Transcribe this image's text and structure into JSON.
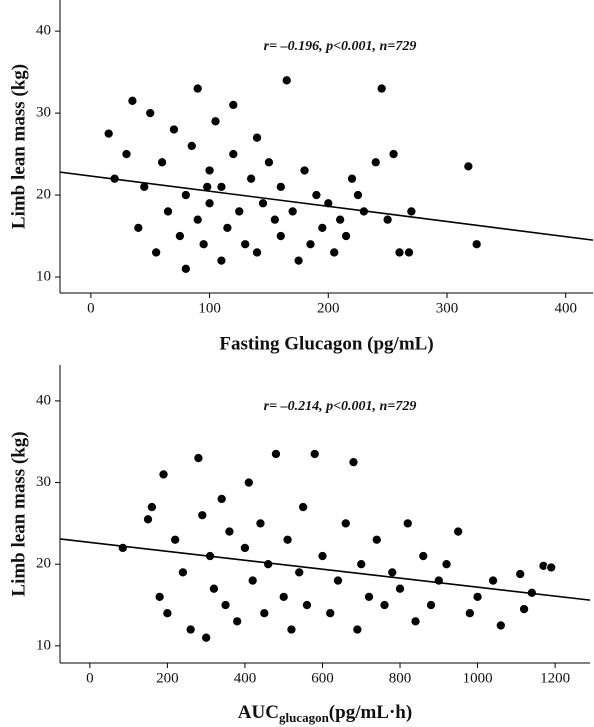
{
  "chart_data": [
    {
      "type": "scatter",
      "annotation": "r= –0.196, p<0.001, n=729",
      "ylabel": "Limb lean mass (kg)",
      "xlabel": "Fasting Glucagon (pg/mL)",
      "xlim": [
        -26,
        423
      ],
      "ylim": [
        8.05,
        43.8
      ],
      "xticks": [
        0,
        100,
        200,
        300,
        400
      ],
      "yticks": [
        10,
        20,
        30,
        40
      ],
      "color": "#000000",
      "x": [
        15,
        20,
        30,
        35,
        40,
        45,
        50,
        55,
        60,
        65,
        70,
        75,
        80,
        80,
        85,
        90,
        90,
        95,
        100,
        100,
        105,
        110,
        110,
        115,
        120,
        120,
        125,
        130,
        135,
        140,
        140,
        145,
        150,
        155,
        160,
        160,
        165,
        170,
        175,
        180,
        185,
        190,
        195,
        200,
        205,
        210,
        215,
        220,
        225,
        230,
        240,
        245,
        250,
        255,
        260,
        268,
        270,
        318,
        325,
        98
      ],
      "values": [
        27.5,
        22,
        25,
        31.5,
        16,
        21,
        30,
        13,
        24,
        18,
        28,
        15,
        11,
        20,
        26,
        33,
        17,
        14,
        23,
        19,
        29,
        12,
        21,
        16,
        25,
        31,
        18,
        14,
        22,
        27,
        13,
        19,
        24,
        17,
        15,
        21,
        34,
        18,
        12,
        23,
        14,
        20,
        16,
        19,
        13,
        17,
        15,
        22,
        20,
        18,
        24,
        33,
        17,
        25,
        13,
        13,
        18,
        23.5,
        14,
        21
      ],
      "trend": {
        "x": [
          -26,
          423
        ],
        "y": [
          22.8,
          14.5
        ]
      }
    },
    {
      "type": "scatter",
      "annotation": "r= –0.214, p<0.001, n=729",
      "ylabel": "Limb lean mass (kg)",
      "xlabel": {
        "main": "AUC",
        "sub": "glucagon",
        "unit": "(pg/mL·h)"
      },
      "xlim": [
        -77,
        1290
      ],
      "ylim": [
        7.9,
        44.4
      ],
      "xticks": [
        0,
        200,
        400,
        600,
        800,
        1000,
        1200
      ],
      "yticks": [
        10,
        20,
        30,
        40
      ],
      "color": "#000000",
      "x": [
        85,
        150,
        160,
        180,
        190,
        200,
        220,
        240,
        260,
        280,
        290,
        300,
        310,
        320,
        340,
        350,
        360,
        380,
        400,
        410,
        420,
        440,
        450,
        460,
        480,
        500,
        510,
        520,
        540,
        550,
        560,
        580,
        600,
        620,
        640,
        660,
        680,
        690,
        700,
        720,
        740,
        760,
        780,
        800,
        820,
        840,
        860,
        880,
        900,
        920,
        950,
        980,
        1000,
        1040,
        1060,
        1110,
        1120,
        1140,
        1170,
        1190
      ],
      "values": [
        22,
        25.5,
        27,
        16,
        31,
        14,
        23,
        19,
        12,
        33,
        26,
        11,
        21,
        17,
        28,
        15,
        24,
        13,
        22,
        30,
        18,
        25,
        14,
        20,
        33.5,
        16,
        23,
        12,
        19,
        27,
        15,
        33.5,
        21,
        14,
        18,
        25,
        32.5,
        12,
        20,
        16,
        23,
        15,
        19,
        17,
        25,
        13,
        21,
        15,
        18,
        20,
        24,
        14,
        16,
        18,
        12.5,
        18.8,
        14.5,
        16.5,
        19.8,
        19.6
      ],
      "trend": {
        "x": [
          -77,
          1290
        ],
        "y": [
          23.1,
          15.6
        ]
      }
    }
  ]
}
